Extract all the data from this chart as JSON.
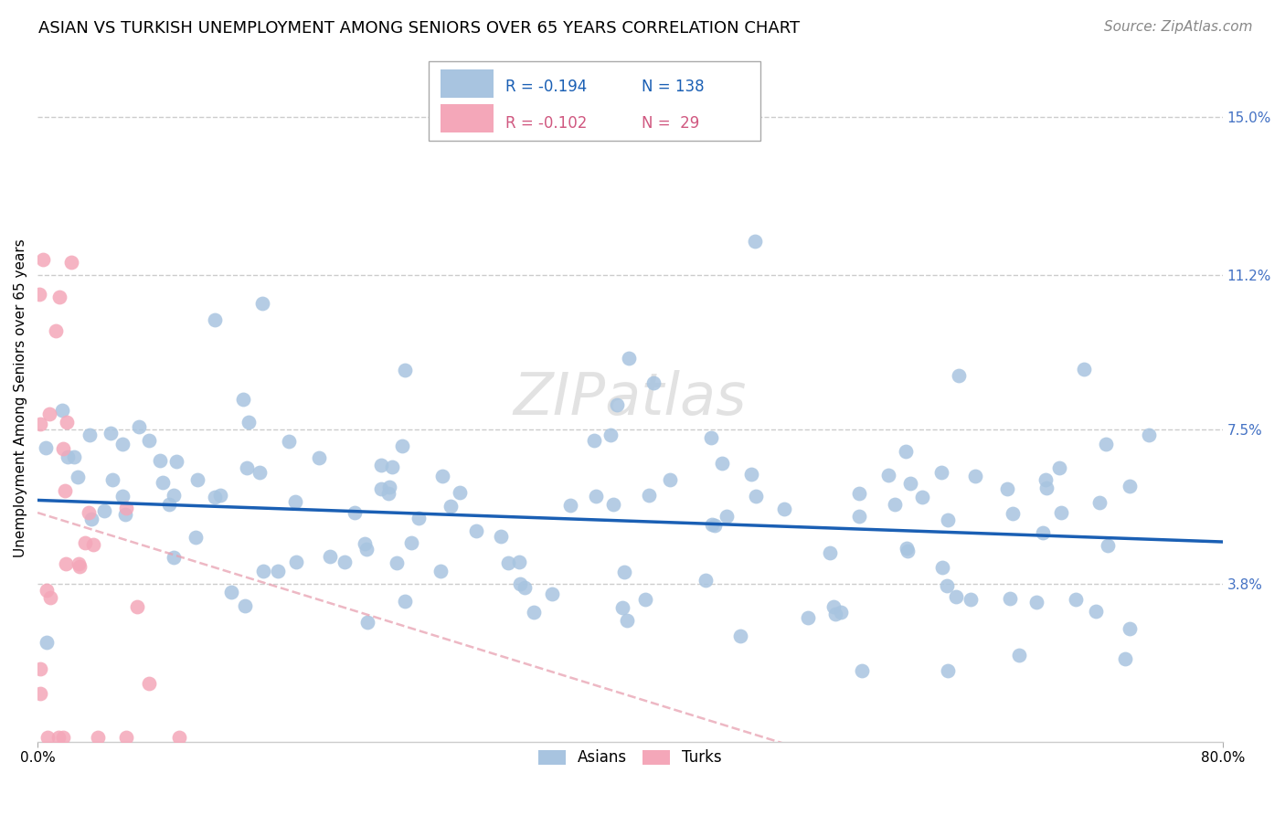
{
  "title": "ASIAN VS TURKISH UNEMPLOYMENT AMONG SENIORS OVER 65 YEARS CORRELATION CHART",
  "source": "Source: ZipAtlas.com",
  "ylabel": "Unemployment Among Seniors over 65 years",
  "x_tick_labels": [
    "0.0%",
    "80.0%"
  ],
  "y_tick_labels": [
    "15.0%",
    "11.2%",
    "7.5%",
    "3.8%"
  ],
  "y_tick_values": [
    0.15,
    0.112,
    0.075,
    0.038
  ],
  "xmin": 0.0,
  "xmax": 0.8,
  "ymin": 0.0,
  "ymax": 0.165,
  "asian_color": "#a8c4e0",
  "turk_color": "#f4a7b9",
  "asian_line_color": "#1a5fb4",
  "turk_line_color": "#e8a0b0",
  "watermark": "ZIPatlas",
  "legend_asian_r": "R = -0.194",
  "legend_asian_n": "N = 138",
  "legend_turk_r": "R = -0.102",
  "legend_turk_n": "N =  29",
  "asian_seed": 42,
  "turk_seed": 7,
  "asian_n": 138,
  "turk_n": 29,
  "asian_r": -0.194,
  "turk_r": -0.102,
  "title_fontsize": 13,
  "label_fontsize": 11,
  "tick_fontsize": 11,
  "legend_fontsize": 12,
  "source_fontsize": 11,
  "watermark_fontsize": 46,
  "grid_color": "#cccccc",
  "grid_linestyle": "--",
  "background_color": "#ffffff",
  "right_tick_color": "#4472c4"
}
